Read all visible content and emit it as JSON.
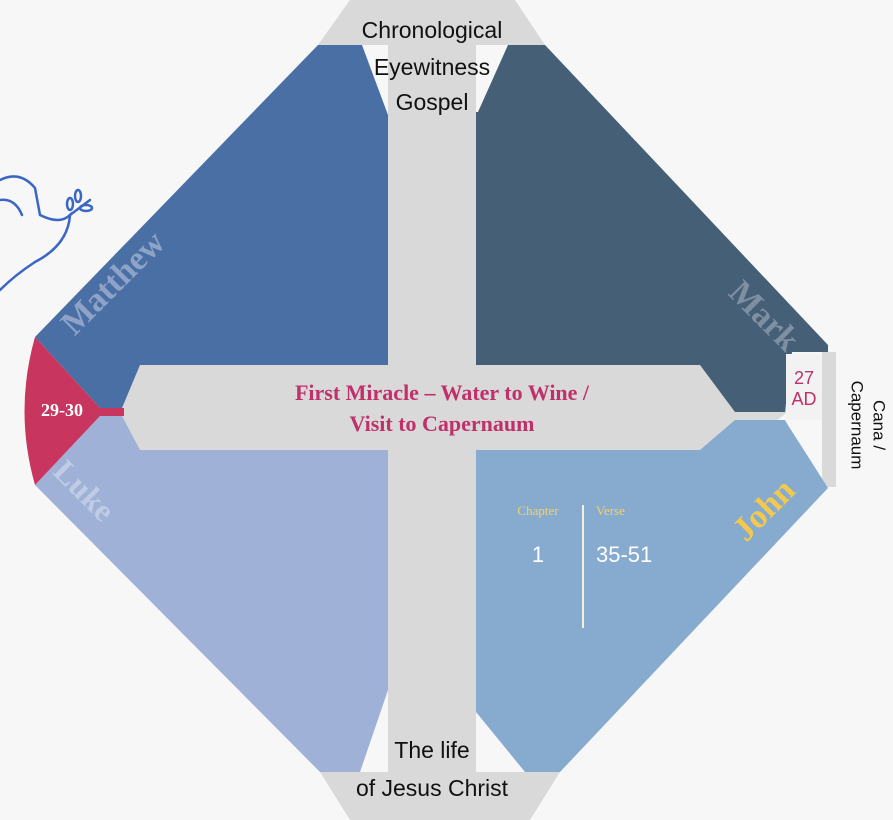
{
  "header": {
    "lines": [
      "Chronological",
      "Eyewitness",
      "Gospel"
    ]
  },
  "footer": {
    "lines": [
      "The life",
      "of Jesus Christ"
    ]
  },
  "quadrants": {
    "top_left": "Matthew",
    "top_right": "Mark",
    "bottom_left": "Luke",
    "bottom_right": "John"
  },
  "center": {
    "lines": [
      "First Miracle – Water to Wine /",
      "Visit to Capernaum"
    ]
  },
  "left_date": "29-30",
  "right_date": {
    "lines": [
      "27",
      "AD"
    ]
  },
  "location": {
    "lines": [
      "Cana /",
      "Capernaum"
    ]
  },
  "reference": {
    "chapter_label": "Chapter",
    "verse_label": "Verse",
    "chapter": "1",
    "verse": "35-51"
  }
}
